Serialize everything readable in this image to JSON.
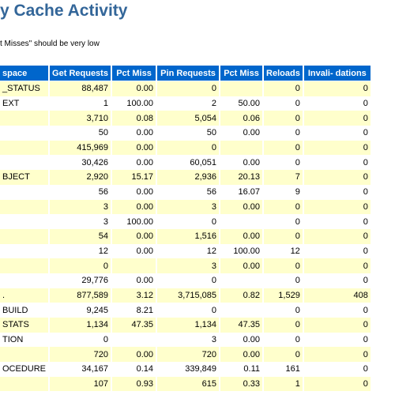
{
  "header": {
    "title": "y Cache Activity",
    "note": "t Misses\" should be very low"
  },
  "table": {
    "columns": [
      "space",
      "Get Requests",
      "Pct Miss",
      "Pin Requests",
      "Pct Miss",
      "Reloads",
      "Invali- dations"
    ],
    "rows": [
      [
        "_STATUS",
        "88,487",
        "0.00",
        "0",
        null,
        "0",
        "0"
      ],
      [
        "EXT",
        "1",
        "100.00",
        "2",
        "50.00",
        "0",
        "0"
      ],
      [
        null,
        "3,710",
        "0.08",
        "5,054",
        "0.06",
        "0",
        "0"
      ],
      [
        null,
        "50",
        "0.00",
        "50",
        "0.00",
        "0",
        "0"
      ],
      [
        null,
        "415,969",
        "0.00",
        "0",
        null,
        "0",
        "0"
      ],
      [
        null,
        "30,426",
        "0.00",
        "60,051",
        "0.00",
        "0",
        "0"
      ],
      [
        "BJECT",
        "2,920",
        "15.17",
        "2,936",
        "20.13",
        "7",
        "0"
      ],
      [
        null,
        "56",
        "0.00",
        "56",
        "16.07",
        "9",
        "0"
      ],
      [
        null,
        "3",
        "0.00",
        "3",
        "0.00",
        "0",
        "0"
      ],
      [
        null,
        "3",
        "100.00",
        "0",
        null,
        "0",
        "0"
      ],
      [
        null,
        "54",
        "0.00",
        "1,516",
        "0.00",
        "0",
        "0"
      ],
      [
        null,
        "12",
        "0.00",
        "12",
        "100.00",
        "12",
        "0"
      ],
      [
        null,
        "0",
        null,
        "3",
        "0.00",
        "0",
        "0"
      ],
      [
        null,
        "29,776",
        "0.00",
        "0",
        null,
        "0",
        "0"
      ],
      [
        ".",
        "877,589",
        "3.12",
        "3,715,085",
        "0.82",
        "1,529",
        "408"
      ],
      [
        "BUILD",
        "9,245",
        "8.21",
        "0",
        null,
        "0",
        "0"
      ],
      [
        "STATS",
        "1,134",
        "47.35",
        "1,134",
        "47.35",
        "0",
        "0"
      ],
      [
        "TION",
        "0",
        null,
        "3",
        "0.00",
        "0",
        "0"
      ],
      [
        null,
        "720",
        "0.00",
        "720",
        "0.00",
        "0",
        "0"
      ],
      [
        "OCEDURE",
        "34,167",
        "0.14",
        "339,849",
        "0.11",
        "161",
        "0"
      ],
      [
        null,
        "107",
        "0.93",
        "615",
        "0.33",
        "1",
        "0"
      ]
    ]
  }
}
